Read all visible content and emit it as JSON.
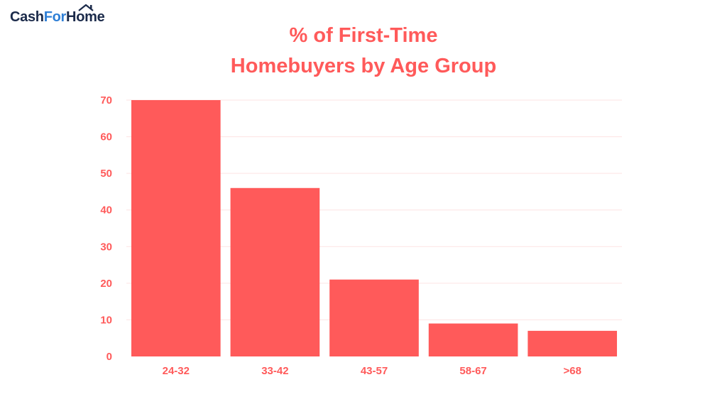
{
  "logo": {
    "part_a": "Cash",
    "part_b": "For",
    "part_c": "Home",
    "icon": "house-roof-icon"
  },
  "colors": {
    "bar": "#ff5a5a",
    "text": "#ff5a5a",
    "grid": "#fde3e3",
    "logo_dark": "#1b2a4a",
    "logo_blue": "#2f7fd6"
  },
  "chart_data": {
    "type": "bar",
    "title_lines": [
      "% of First-Time",
      "Homebuyers by Age Group"
    ],
    "categories": [
      "24-32",
      "33-42",
      "43-57",
      "58-67",
      ">68"
    ],
    "values": [
      70,
      46,
      21,
      9,
      7
    ],
    "ylim": [
      0,
      70
    ],
    "yticks": [
      0,
      10,
      20,
      30,
      40,
      50,
      60,
      70
    ],
    "xlabel": "",
    "ylabel": "",
    "grid": true,
    "legend": "none"
  }
}
